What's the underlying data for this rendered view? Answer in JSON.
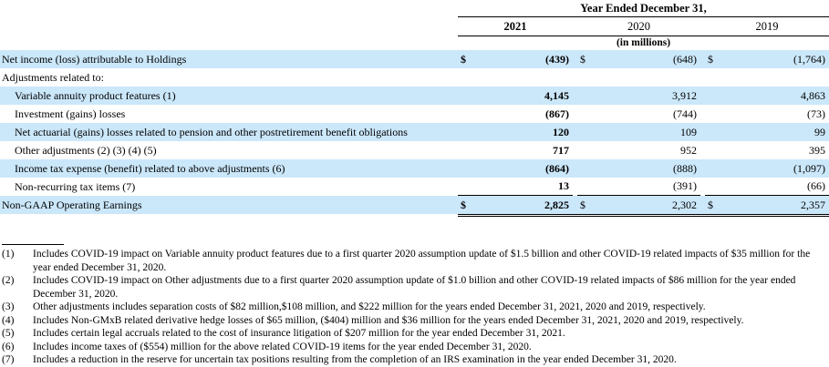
{
  "table": {
    "header": {
      "title": "Year Ended December 31,",
      "col_2021": "2021",
      "col_2020": "2020",
      "col_2019": "2019",
      "units": "(in millions)"
    },
    "rows": [
      {
        "label": "Net income (loss) attributable to Holdings",
        "dollar": "$",
        "v2021": "(439)",
        "v2020": "(648)",
        "v2019": "(1,764)"
      },
      {
        "label": "Adjustments related to:",
        "dollar": "",
        "v2021": "",
        "v2020": "",
        "v2019": ""
      },
      {
        "label": "Variable annuity product features (1)",
        "dollar": "",
        "v2021": "4,145",
        "v2020": "3,912",
        "v2019": "4,863"
      },
      {
        "label": "Investment (gains) losses",
        "dollar": "",
        "v2021": "(867)",
        "v2020": "(744)",
        "v2019": "(73)"
      },
      {
        "label": "Net actuarial (gains) losses related to pension and other postretirement benefit obligations",
        "dollar": "",
        "v2021": "120",
        "v2020": "109",
        "v2019": "99"
      },
      {
        "label": "Other adjustments (2) (3) (4) (5)",
        "dollar": "",
        "v2021": "717",
        "v2020": "952",
        "v2019": "395"
      },
      {
        "label": "Income tax expense (benefit) related to above adjustments (6)",
        "dollar": "",
        "v2021": "(864)",
        "v2020": "(888)",
        "v2019": "(1,097)"
      },
      {
        "label": "Non-recurring tax items (7)",
        "dollar": "",
        "v2021": "13",
        "v2020": "(391)",
        "v2019": "(66)"
      },
      {
        "label": "Non-GAAP Operating Earnings",
        "dollar": "$",
        "v2021": "2,825",
        "v2020": "2,302",
        "v2019": "2,357"
      }
    ]
  },
  "footnotes": [
    {
      "num": "(1)",
      "text": "Includes COVID-19 impact on Variable annuity product features due to a first quarter 2020 assumption update of $1.5 billion and other COVID-19 related impacts of $35 million for the year ended December 31, 2020."
    },
    {
      "num": "(2)",
      "text": "Includes COVID-19 impact on Other adjustments due to a first quarter 2020 assumption update of $1.0 billion and other COVID-19 related impacts of $86 million for the year ended December 31, 2020."
    },
    {
      "num": "(3)",
      "text": "Other adjustments includes separation costs of $82 million,$108 million, and $222 million for the years ended December 31, 2021, 2020 and 2019, respectively."
    },
    {
      "num": "(4)",
      "text": "Includes Non-GMxB related derivative hedge losses of $65 million, ($404) million and $36 million for the years ended December 31, 2021, 2020 and 2019, respectively."
    },
    {
      "num": "(5)",
      "text": "Includes certain legal accruals related to the cost of insurance litigation of $207 million for the year ended December 31, 2021."
    },
    {
      "num": "(6)",
      "text": "Includes income taxes of ($554) million for the above related COVID-19 items for the year ended December 31, 2020."
    },
    {
      "num": "(7)",
      "text": "Includes a reduction in the reserve for uncertain tax positions resulting from the completion of an IRS examination in the year ended December 31, 2020."
    }
  ],
  "colors": {
    "highlight": "#cbe7fa"
  }
}
